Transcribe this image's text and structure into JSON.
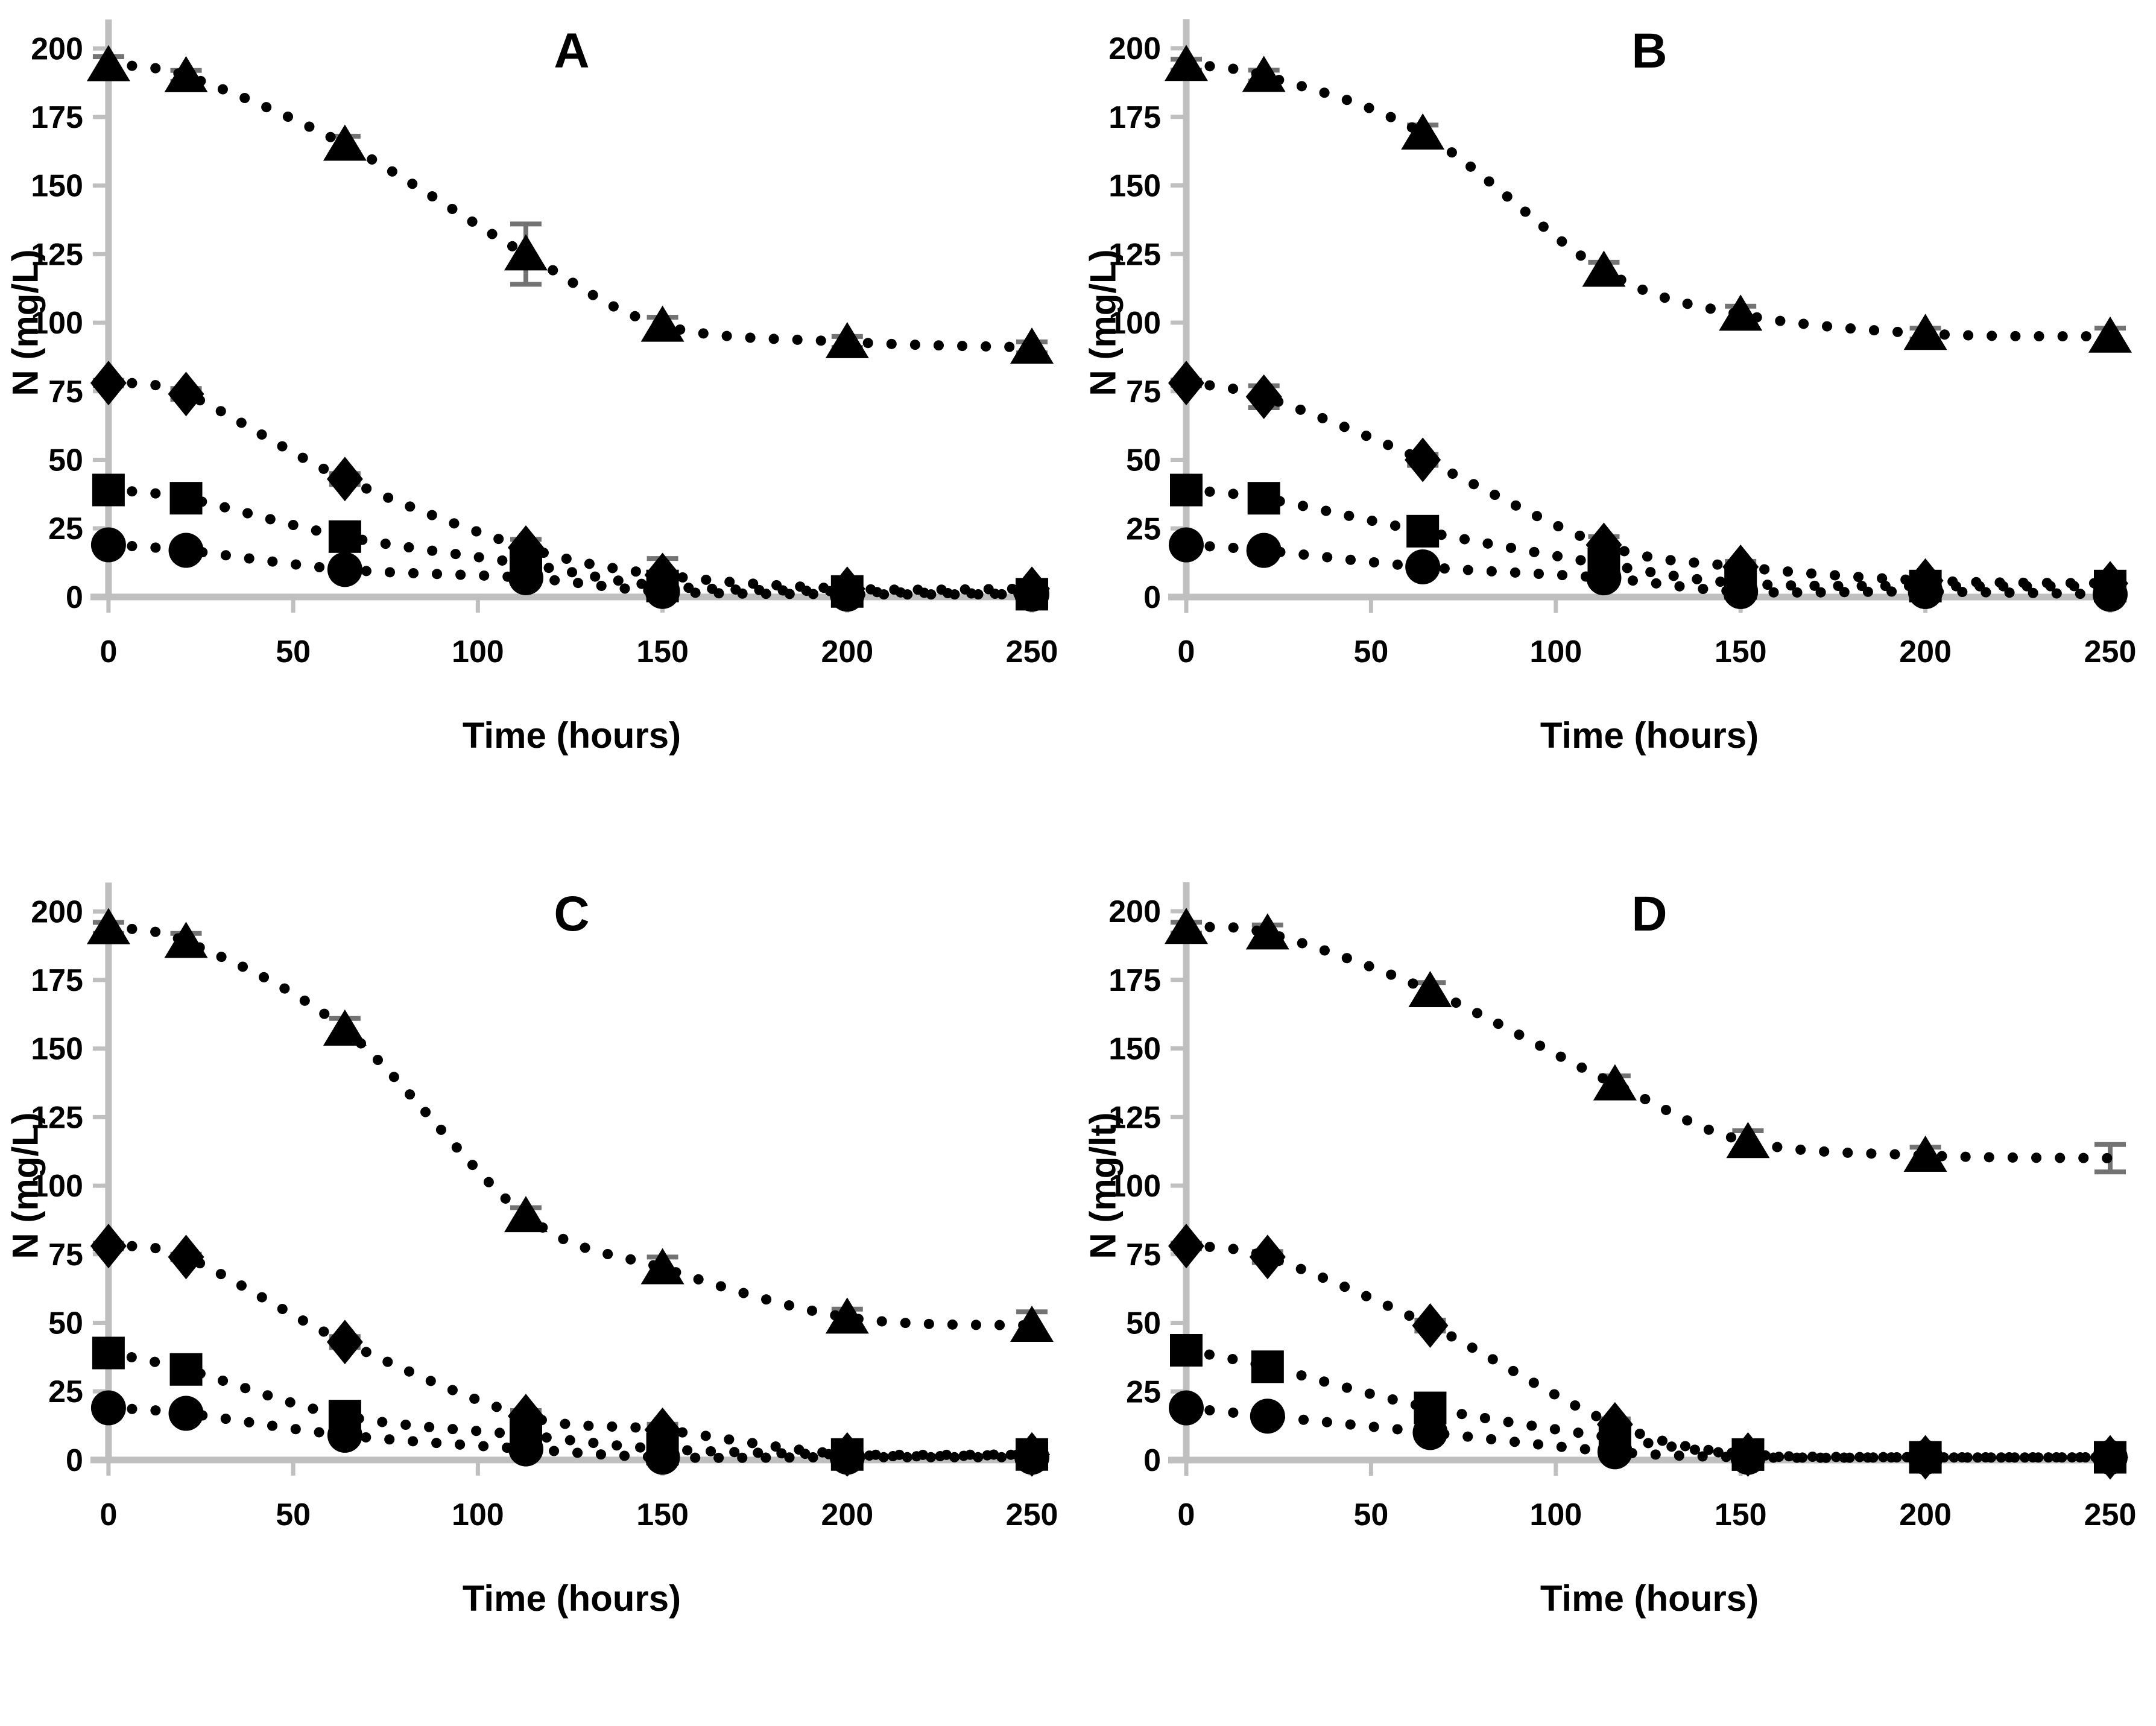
{
  "figure": {
    "description_visible_text_only": "Four-panel line chart figure",
    "panel_count": 4
  },
  "chart_style": {
    "marker_color": "#000000",
    "line_color": "#000000",
    "axis_color": "#bfbfbf",
    "error_bar_color": "#737373",
    "background": "#ffffff",
    "line_style": "dotted",
    "grid": "off",
    "legend": "none"
  },
  "chart_data": [
    {
      "type": "line",
      "title": "A",
      "xlabel": "Time (hours)",
      "ylabel": "N (mg/L)",
      "xlim": [
        0,
        250
      ],
      "ylim": [
        0,
        200
      ],
      "xticks": [
        0,
        50,
        100,
        150,
        200,
        250
      ],
      "yticks": [
        0,
        25,
        50,
        75,
        100,
        125,
        150,
        175,
        200
      ],
      "x": [
        0,
        21,
        64,
        113,
        150,
        200,
        250
      ],
      "series": [
        {
          "name": "triangle-series",
          "marker": "triangle",
          "values": [
            194,
            190,
            165,
            125,
            99,
            93,
            91
          ],
          "err": [
            3,
            2,
            3,
            11,
            3,
            2,
            2
          ]
        },
        {
          "name": "diamond-series",
          "marker": "diamond",
          "values": [
            78,
            74,
            43,
            18,
            8,
            3,
            3
          ],
          "err": [
            1,
            2,
            2,
            3,
            6,
            1,
            1
          ]
        },
        {
          "name": "square-series",
          "marker": "square",
          "values": [
            39,
            36,
            22,
            12,
            4,
            2,
            1
          ],
          "err": [
            1,
            1,
            2,
            3,
            2,
            1,
            1
          ]
        },
        {
          "name": "circle-series",
          "marker": "circle",
          "values": [
            19,
            17,
            10,
            7,
            2,
            1,
            1
          ],
          "err": [
            1,
            1,
            1,
            2,
            2,
            1,
            1
          ]
        }
      ]
    },
    {
      "type": "line",
      "title": "B",
      "xlabel": "Time (hours)",
      "ylabel": "N (mg/L)",
      "xlim": [
        0,
        250
      ],
      "ylim": [
        0,
        200
      ],
      "xticks": [
        0,
        50,
        100,
        150,
        200,
        250
      ],
      "yticks": [
        0,
        25,
        50,
        75,
        100,
        125,
        150,
        175,
        200
      ],
      "x": [
        0,
        21,
        64,
        113,
        150,
        200,
        250
      ],
      "series": [
        {
          "name": "triangle-series",
          "marker": "triangle",
          "values": [
            194,
            190,
            169,
            119,
            103,
            96,
            95
          ],
          "err": [
            2,
            2,
            3,
            3,
            3,
            2,
            3
          ]
        },
        {
          "name": "diamond-series",
          "marker": "diamond",
          "values": [
            78,
            73,
            50,
            19,
            11,
            6,
            5
          ],
          "err": [
            1,
            4,
            2,
            3,
            2,
            1,
            1
          ]
        },
        {
          "name": "square-series",
          "marker": "square",
          "values": [
            39,
            36,
            24,
            12,
            5,
            4,
            4
          ],
          "err": [
            1,
            2,
            4,
            3,
            2,
            1,
            1
          ]
        },
        {
          "name": "circle-series",
          "marker": "circle",
          "values": [
            19,
            17,
            11,
            7,
            2,
            2,
            1
          ],
          "err": [
            1,
            1,
            1,
            2,
            1,
            1,
            1
          ]
        }
      ]
    },
    {
      "type": "line",
      "title": "C",
      "xlabel": "Time (hours)",
      "ylabel": "N (mg/L)",
      "xlim": [
        0,
        250
      ],
      "ylim": [
        0,
        200
      ],
      "xticks": [
        0,
        50,
        100,
        150,
        200,
        250
      ],
      "yticks": [
        0,
        25,
        50,
        75,
        100,
        125,
        150,
        175,
        200
      ],
      "x": [
        0,
        21,
        64,
        113,
        150,
        200,
        250
      ],
      "series": [
        {
          "name": "triangle-series",
          "marker": "triangle",
          "values": [
            194,
            189,
            157,
            89,
            70,
            52,
            49
          ],
          "err": [
            2,
            3,
            4,
            3,
            4,
            3,
            5
          ]
        },
        {
          "name": "diamond-series",
          "marker": "diamond",
          "values": [
            78,
            74,
            43,
            16,
            11,
            2,
            2
          ],
          "err": [
            1,
            1,
            2,
            2,
            2,
            1,
            1
          ]
        },
        {
          "name": "square-series",
          "marker": "square",
          "values": [
            39,
            33,
            16,
            9,
            4,
            2,
            2
          ],
          "err": [
            1,
            1,
            2,
            3,
            1,
            1,
            1
          ]
        },
        {
          "name": "circle-series",
          "marker": "circle",
          "values": [
            19,
            17,
            9,
            4,
            1,
            1,
            1
          ],
          "err": [
            1,
            1,
            1,
            1,
            1,
            1,
            1
          ]
        }
      ]
    },
    {
      "type": "line",
      "title": "D",
      "xlabel": "Time (hours)",
      "ylabel": "N (mg/lt)",
      "xlim": [
        0,
        250
      ],
      "ylim": [
        0,
        200
      ],
      "xticks": [
        0,
        50,
        100,
        150,
        200,
        250
      ],
      "yticks": [
        0,
        25,
        50,
        75,
        100,
        125,
        150,
        175,
        200
      ],
      "x": [
        0,
        22,
        66,
        116,
        152,
        200,
        250
      ],
      "series": [
        {
          "name": "triangle-series",
          "marker": "triangle",
          "values": [
            194,
            192,
            171,
            137,
            116,
            111,
            110
          ],
          "err": [
            2,
            3,
            3,
            3,
            4,
            3,
            5
          ],
          "no_marker_indices": [
            6
          ]
        },
        {
          "name": "diamond-series",
          "marker": "diamond",
          "values": [
            78,
            74,
            49,
            13,
            2,
            1,
            1
          ],
          "err": [
            1,
            2,
            2,
            2,
            1,
            1,
            1
          ]
        },
        {
          "name": "square-series",
          "marker": "square",
          "values": [
            40,
            34,
            19,
            8,
            2,
            1,
            1
          ],
          "err": [
            1,
            1,
            3,
            2,
            1,
            1,
            1
          ]
        },
        {
          "name": "circle-series",
          "marker": "circle",
          "values": [
            19,
            16,
            10,
            3,
            1,
            1,
            1
          ],
          "err": [
            1,
            1,
            1,
            1,
            1,
            1,
            1
          ]
        }
      ]
    }
  ]
}
